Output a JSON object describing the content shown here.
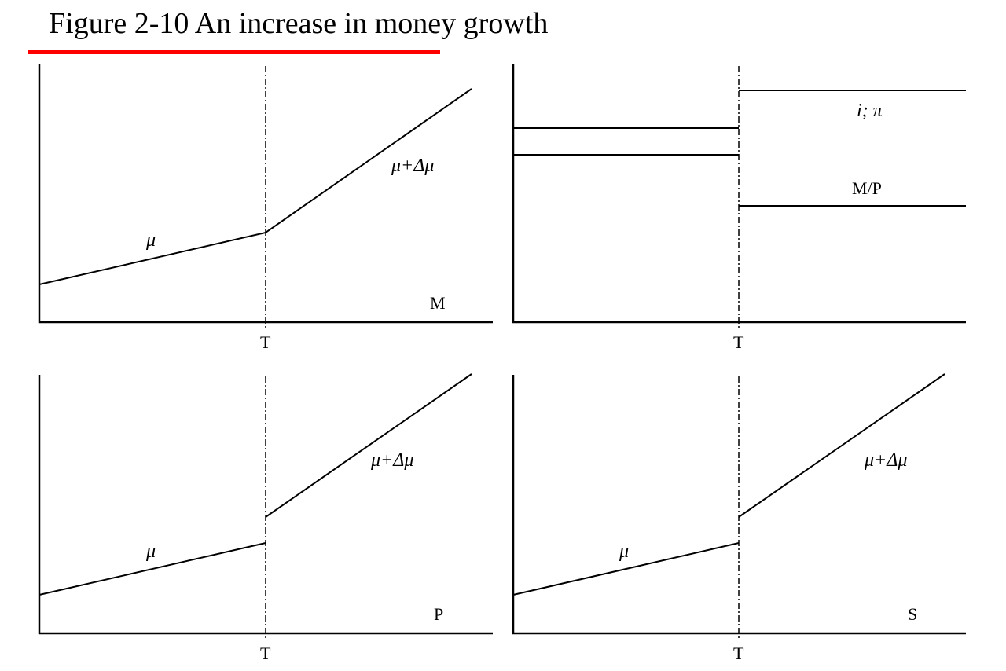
{
  "title": "Figure 2-10 An increase in money growth",
  "accent_color": "#ff0000",
  "panels": {
    "money": {
      "series_label": "M",
      "time_label": "T",
      "before_label": "μ",
      "after_label": "μ+Δμ"
    },
    "rates": {
      "time_label": "T",
      "upper_label": "i; π",
      "lower_label": "M/P"
    },
    "price": {
      "series_label": "P",
      "time_label": "T",
      "before_label": "μ",
      "after_label": "μ+Δμ"
    },
    "exchange": {
      "series_label": "S",
      "time_label": "T",
      "before_label": "μ",
      "after_label": "μ+Δμ"
    }
  }
}
